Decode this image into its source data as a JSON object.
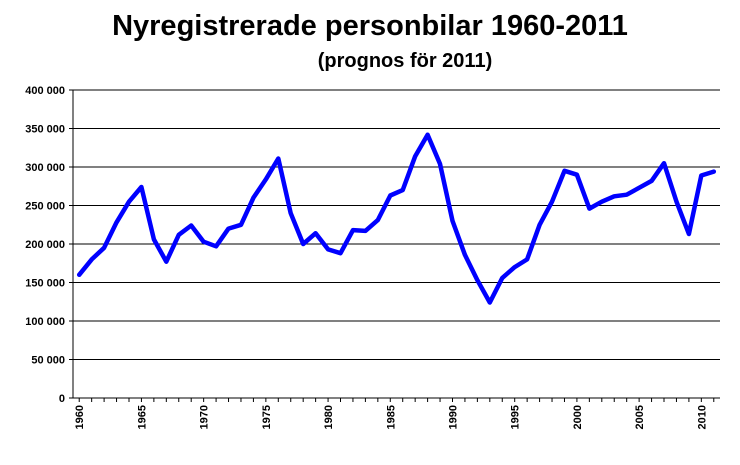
{
  "chart_data": {
    "type": "line",
    "title": "Nyregistrerade personbilar 1960-2011",
    "subtitle": "(prognos för 2011)",
    "xlabel": "",
    "ylabel": "",
    "ylim": [
      0,
      400000
    ],
    "yticks": [
      0,
      50000,
      100000,
      150000,
      200000,
      250000,
      300000,
      350000,
      400000
    ],
    "ytick_labels": [
      "0",
      "50 000",
      "100 000",
      "150 000",
      "200 000",
      "250 000",
      "300 000",
      "350 000",
      "400 000"
    ],
    "xticks": [
      1960,
      1965,
      1970,
      1975,
      1980,
      1985,
      1990,
      1995,
      2000,
      2005,
      2010
    ],
    "xtick_labels": [
      "1960",
      "1965",
      "1970",
      "1975",
      "1980",
      "1985",
      "1990",
      "1995",
      "2000",
      "2005",
      "2010"
    ],
    "grid": true,
    "line_color": "#0000ff",
    "x": [
      1960,
      1961,
      1962,
      1963,
      1964,
      1965,
      1966,
      1967,
      1968,
      1969,
      1970,
      1971,
      1972,
      1973,
      1974,
      1975,
      1976,
      1977,
      1978,
      1979,
      1980,
      1981,
      1982,
      1983,
      1984,
      1985,
      1986,
      1987,
      1988,
      1989,
      1990,
      1991,
      1992,
      1993,
      1994,
      1995,
      1996,
      1997,
      1998,
      1999,
      2000,
      2001,
      2002,
      2003,
      2004,
      2005,
      2006,
      2007,
      2008,
      2009,
      2010,
      2011
    ],
    "series": [
      {
        "values": [
          160000,
          180000,
          195000,
          228000,
          255000,
          274000,
          206000,
          177000,
          212000,
          224000,
          203000,
          197000,
          220000,
          225000,
          260000,
          284000,
          311000,
          240000,
          200000,
          214000,
          193000,
          188000,
          218000,
          217000,
          231000,
          263000,
          270000,
          314000,
          342000,
          304000,
          230000,
          186000,
          153000,
          124000,
          156000,
          170000,
          180000,
          225000,
          255000,
          295000,
          290000,
          246000,
          255000,
          262000,
          264000,
          273000,
          282000,
          305000,
          255000,
          213000,
          289000,
          294000
        ]
      }
    ]
  }
}
